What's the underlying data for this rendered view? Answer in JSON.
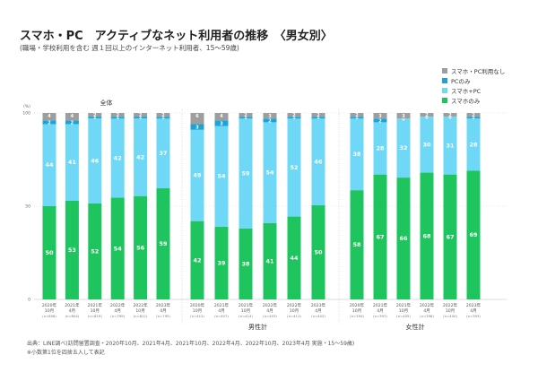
{
  "title": "スマホ・PC　アクティブなネット利用者の推移　〈男女別〉",
  "subtitle": "(職場・学校利用を含む 週１回以上のインターネット利用者、15～59歳)",
  "footer_lines": [
    "出典：LINE調べ(訪問留置調査・2020年10月、2021年4月、2021年10月、2022年4月、2022年10月、2023年4月 実施・15～59歳)",
    "※小数第1位を四捨五入して表記"
  ],
  "chart_data": {
    "type": "bar",
    "stacked": true,
    "ylabel": "(%)",
    "ylim": [
      0,
      100
    ],
    "yticks": [
      0,
      50,
      100
    ],
    "legend_position": "top-right",
    "series_meta": [
      {
        "key": "none",
        "name": "スマホ・PC利用なし",
        "color": "#9e9e9e"
      },
      {
        "key": "pc",
        "name": "PCのみ",
        "color": "#1aa4d8"
      },
      {
        "key": "both",
        "name": "スマホ+PC",
        "color": "#6fd8f6"
      },
      {
        "key": "sp",
        "name": "スマホのみ",
        "color": "#1ec45d"
      }
    ],
    "groups": [
      {
        "name": "全体",
        "bars": [
          {
            "date": "2020年\n10月",
            "n": "(n=806)",
            "sp": 50,
            "both": 44,
            "pc": 2,
            "none": 4
          },
          {
            "date": "2021年\n4月",
            "n": "(n=804)",
            "sp": 53,
            "both": 41,
            "pc": 2,
            "none": 4
          },
          {
            "date": "2021年\n10月",
            "n": "(n=819)",
            "sp": 52,
            "both": 46,
            "pc": 1,
            "none": 2
          },
          {
            "date": "2022年\n4月",
            "n": "(n=799)",
            "sp": 54,
            "both": 42,
            "pc": 1,
            "none": 2
          },
          {
            "date": "2022年\n10月",
            "n": "(n=811)",
            "sp": 56,
            "both": 42,
            "pc": 1,
            "none": 2
          },
          {
            "date": "2023年\n4月",
            "n": "(n=795)",
            "sp": 59,
            "both": 37,
            "pc": 1,
            "none": 2
          }
        ]
      },
      {
        "name": "男性計",
        "bars": [
          {
            "date": "2020年\n10月",
            "n": "(n=412)",
            "sp": 42,
            "both": 49,
            "pc": 3,
            "none": 6
          },
          {
            "date": "2021年\n4月",
            "n": "(n=407)",
            "sp": 39,
            "both": 54,
            "pc": 3,
            "none": 4
          },
          {
            "date": "2021年\n10月",
            "n": "(n=414)",
            "sp": 38,
            "both": 59,
            "pc": 1,
            "none": 2
          },
          {
            "date": "2022年\n4月",
            "n": "(n=403)",
            "sp": 41,
            "both": 54,
            "pc": 2,
            "none": 3
          },
          {
            "date": "2022年\n10月",
            "n": "(n=411)",
            "sp": 44,
            "both": 52,
            "pc": 1,
            "none": 2
          },
          {
            "date": "2023年\n4月",
            "n": "(n=402)",
            "sp": 50,
            "both": 46,
            "pc": 1,
            "none": 2
          }
        ]
      },
      {
        "name": "女性計",
        "bars": [
          {
            "date": "2020年\n10月",
            "n": "(n=394)",
            "sp": 58,
            "both": 38,
            "pc": 1,
            "none": 2
          },
          {
            "date": "2021年\n4月",
            "n": "(n=397)",
            "sp": 67,
            "both": 28,
            "pc": 2,
            "none": 3
          },
          {
            "date": "2021年\n10月",
            "n": "(n=405)",
            "sp": 66,
            "both": 32,
            "pc": 0,
            "none": 3
          },
          {
            "date": "2022年\n4月",
            "n": "(n=396)",
            "sp": 68,
            "both": 30,
            "pc": 0,
            "none": 2
          },
          {
            "date": "2022年\n10月",
            "n": "(n=400)",
            "sp": 67,
            "both": 31,
            "pc": 0,
            "none": 2
          },
          {
            "date": "2023年\n4月",
            "n": "(n=393)",
            "sp": 69,
            "both": 28,
            "pc": 1,
            "none": 2
          }
        ]
      }
    ]
  }
}
